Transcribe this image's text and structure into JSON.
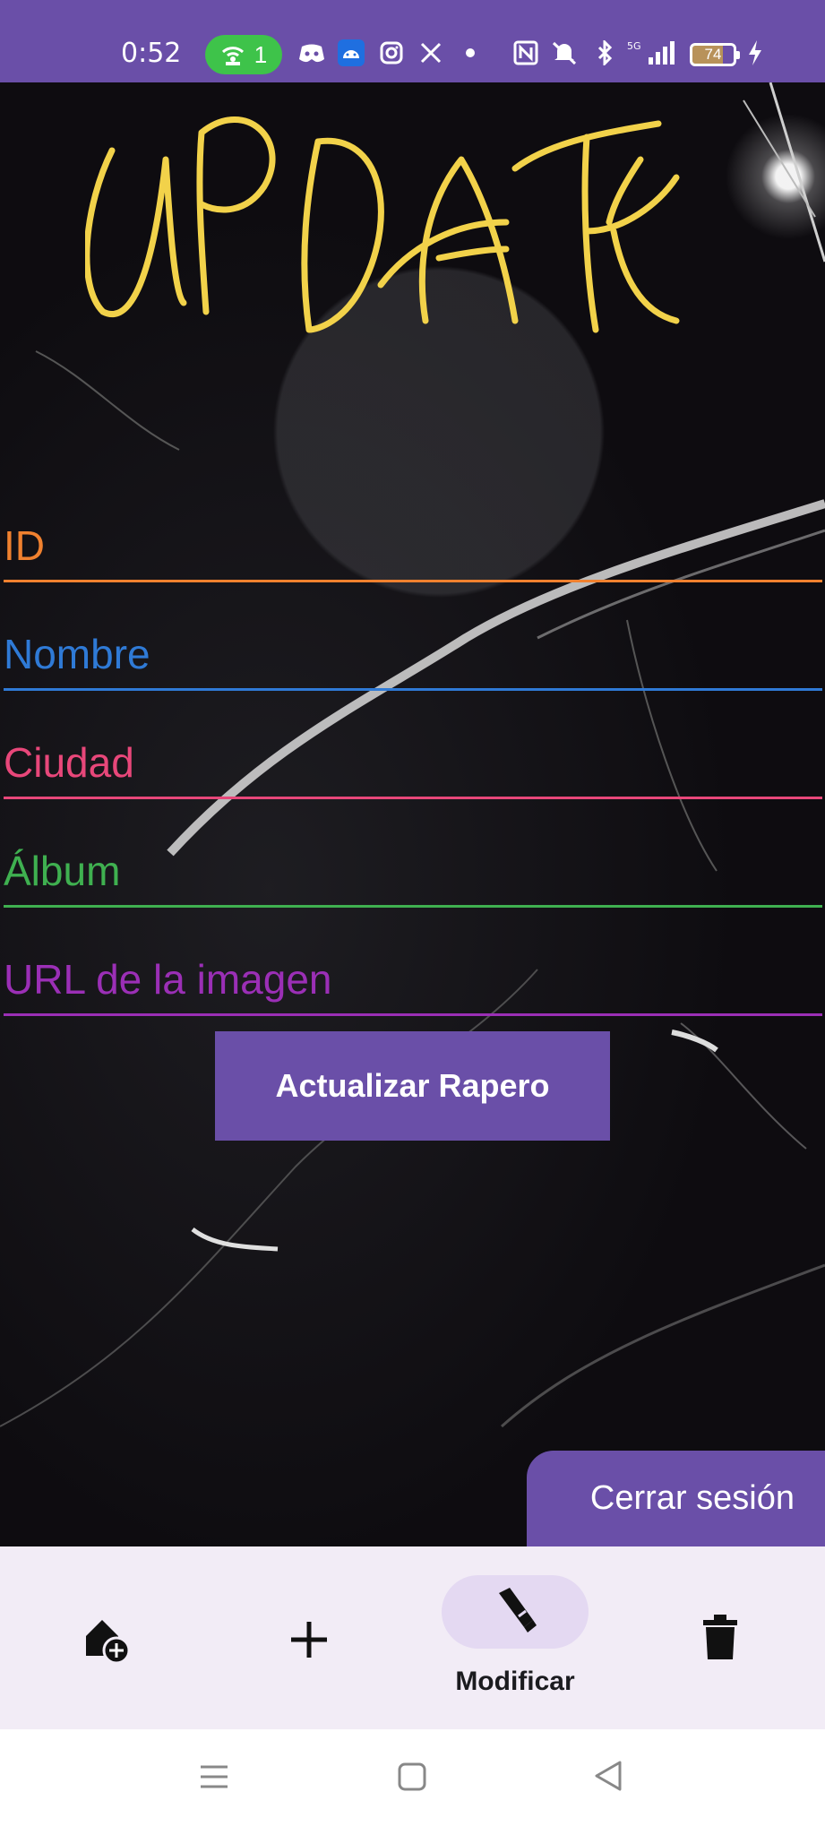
{
  "status_bar": {
    "time": "0:52",
    "hotspot_count": "1",
    "battery_level": "74",
    "icons": [
      "hotspot-icon",
      "discord-icon",
      "android-icon",
      "instagram-icon",
      "x-icon",
      "dot-icon",
      "nfc-icon",
      "mute-icon",
      "bluetooth-icon",
      "signal-icon",
      "battery-icon",
      "charging-icon"
    ]
  },
  "title_art": "UPDATE",
  "form": {
    "fields": [
      {
        "label": "ID",
        "color": "#f0812f"
      },
      {
        "label": "Nombre",
        "color": "#2f7ad6"
      },
      {
        "label": "Ciudad",
        "color": "#e8477a"
      },
      {
        "label": "Álbum",
        "color": "#3fb050"
      },
      {
        "label": "URL de la imagen",
        "color": "#9b2fb6"
      }
    ],
    "submit_label": "Actualizar Rapero"
  },
  "logout_label": "Cerrar sesión",
  "bottom_nav": {
    "items": [
      {
        "icon": "home-add-icon",
        "label": ""
      },
      {
        "icon": "add-icon",
        "label": ""
      },
      {
        "icon": "brush-icon",
        "label": "Modificar"
      },
      {
        "icon": "trash-icon",
        "label": ""
      }
    ],
    "active_label": "Modificar"
  },
  "system_nav": {
    "icons": [
      "recents-icon",
      "home-icon",
      "back-icon"
    ]
  },
  "colors": {
    "accent": "#6a4fa8",
    "title": "#f2d24a",
    "nav_bg": "#f2ecf6"
  }
}
